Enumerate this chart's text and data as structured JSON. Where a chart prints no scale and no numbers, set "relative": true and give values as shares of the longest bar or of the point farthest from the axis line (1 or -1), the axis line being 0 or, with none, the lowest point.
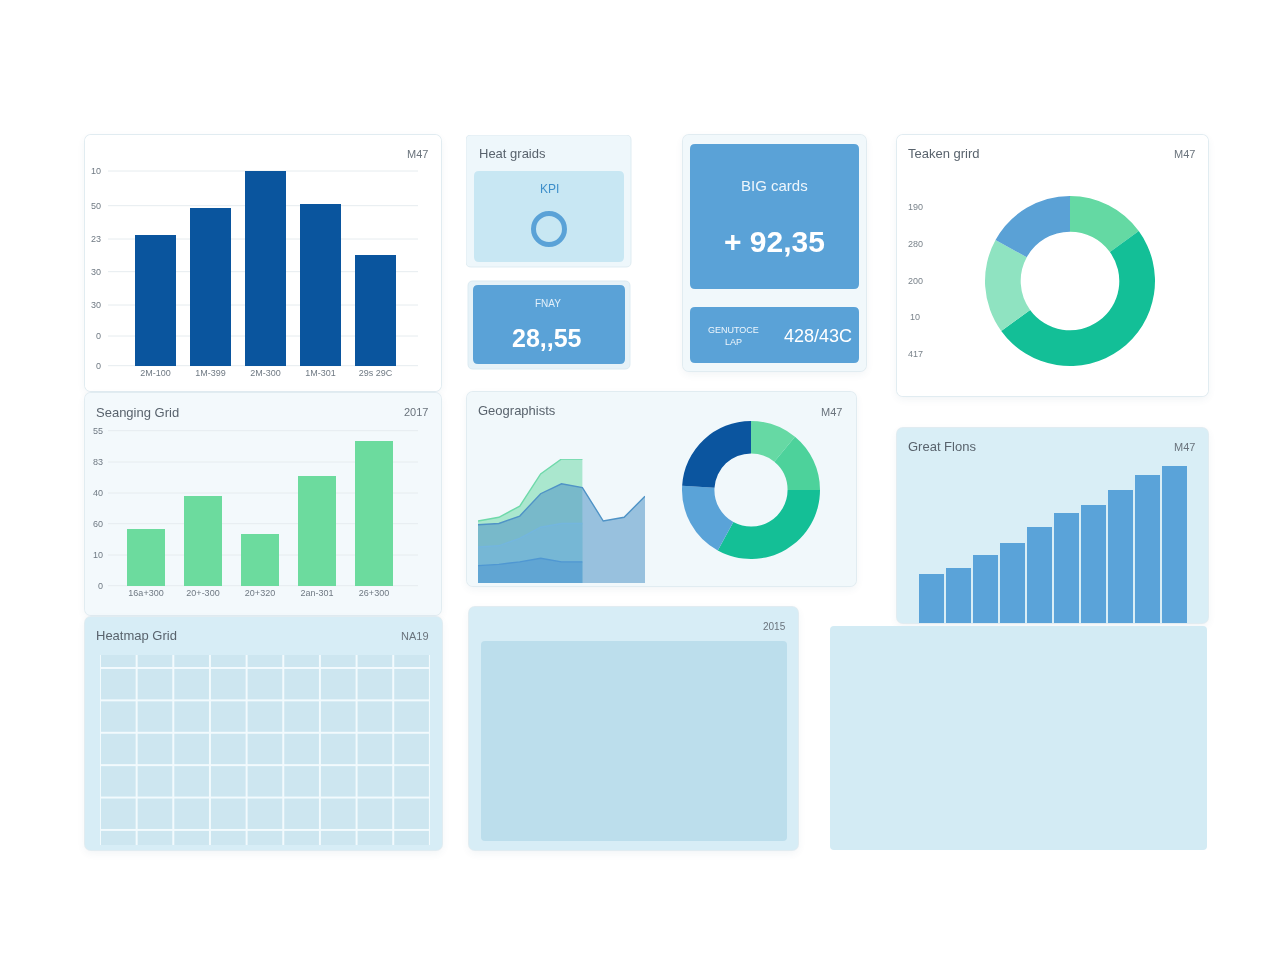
{
  "chart_data": [
    {
      "type": "bar",
      "subtitle": "M47",
      "categories": [
        "2M-100",
        "1M-399",
        "2M-300",
        "1M-301",
        "29s 29C"
      ],
      "values": [
        0.67,
        0.81,
        1,
        0.83,
        0.57
      ],
      "color": "#0a559e",
      "relative": true,
      "grid": "y",
      "annotations": [
        "10",
        "50",
        "23",
        "30",
        "30",
        "0",
        "0"
      ]
    },
    {
      "type": "other",
      "title": "Heat graids",
      "annotations": [
        "KPI",
        "FNAY",
        "28,,55"
      ]
    },
    {
      "type": "other",
      "annotations": [
        "BIG cards",
        "+ 92,35",
        "GENUTOCE\nLAP",
        "428/43C"
      ]
    },
    {
      "type": "donut",
      "title": "Teaken grird",
      "subtitle": "M47",
      "categories": [
        null,
        null,
        null,
        null
      ],
      "values": [
        15,
        50,
        18,
        17
      ],
      "colors": [
        "#64d9a3",
        "#13bf97",
        "#8fe3c1",
        "#5aa1d6"
      ],
      "annotations": [
        "190",
        "280",
        "200",
        "10",
        "417"
      ]
    },
    {
      "type": "bar",
      "title": "Seanging Grid",
      "subtitle": "2017",
      "categories": [
        "16a+300",
        "20+-300",
        "20+320",
        "2an-301",
        "26+300"
      ],
      "values": [
        0.39,
        0.62,
        0.36,
        0.76,
        1
      ],
      "color": "#6cdb9e",
      "relative": true,
      "grid": "y",
      "annotations": [
        "55",
        "83",
        "40",
        "60",
        "10",
        "0"
      ]
    },
    {
      "type": "area",
      "title": "Geographists",
      "relative": true,
      "categories": [
        null,
        null,
        null,
        null,
        null,
        null,
        null,
        null,
        null
      ],
      "series": [
        {
          "color": "#6fd9aa",
          "values": [
            0.5,
            0.53,
            0.62,
            0.88,
            1,
            1,
            null,
            null,
            null
          ]
        },
        {
          "color": "#4f93c6",
          "values": [
            0.47,
            0.48,
            0.54,
            0.72,
            0.8,
            0.77,
            0.5,
            0.53,
            0.7
          ]
        },
        {
          "color": "#74b6de",
          "values": [
            0.29,
            0.3,
            0.36,
            0.45,
            0.48,
            0.48,
            null,
            null,
            null
          ]
        },
        {
          "color": "#4f97d2",
          "values": [
            0.14,
            0.15,
            0.17,
            0.2,
            0.17,
            0.17,
            null,
            null,
            null
          ]
        }
      ]
    },
    {
      "type": "donut",
      "subtitle": "M47",
      "categories": [
        null,
        null,
        null,
        null,
        null
      ],
      "values": [
        11,
        14,
        33,
        18,
        24
      ],
      "colors": [
        "#66d9a4",
        "#4dd29b",
        "#14bf96",
        "#5aa3d8",
        "#0b559f"
      ]
    },
    {
      "type": "bar",
      "title": "Great Flons",
      "subtitle": "M47",
      "relative": true,
      "categories": [
        null,
        null,
        null,
        null,
        null,
        null,
        null,
        null,
        null,
        null
      ],
      "values": [
        0.31,
        0.35,
        0.43,
        0.51,
        0.61,
        0.7,
        0.75,
        0.85,
        0.94,
        1
      ],
      "color": "#5aa3d9"
    },
    {
      "type": "other",
      "title": "Heatmap Grid",
      "subtitle": "NA19"
    },
    {
      "type": "other",
      "annotations": [
        "2015"
      ]
    }
  ]
}
